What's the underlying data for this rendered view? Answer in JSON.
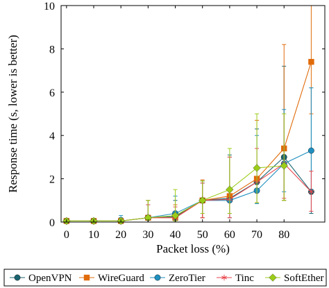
{
  "chart_data": {
    "type": "line",
    "xlabel": "Packet loss (%)",
    "ylabel": "Response time (s, lower is better)",
    "xlim": [
      -2,
      95
    ],
    "ylim": [
      0,
      10
    ],
    "x_ticks": [
      0,
      10,
      20,
      30,
      40,
      50,
      60,
      70,
      80
    ],
    "y_ticks": [
      0,
      2,
      4,
      6,
      8,
      10
    ],
    "x": [
      0,
      10,
      20,
      30,
      40,
      50,
      60,
      70,
      80,
      90
    ],
    "grid": false,
    "legend_position": "below",
    "series": [
      {
        "name": "OpenVPN",
        "color": "#1a6470",
        "marker": "circle",
        "values": [
          0.05,
          0.05,
          0.05,
          0.2,
          0.25,
          1.0,
          1.1,
          1.85,
          3.0,
          1.4
        ],
        "err_low": [
          0.05,
          0.05,
          0.05,
          0.2,
          0.2,
          0.8,
          0.9,
          1.0,
          2.0,
          1.0
        ],
        "err_high": [
          0.05,
          0.05,
          0.15,
          0.8,
          0.75,
          0.9,
          2.0,
          2.45,
          4.2,
          4.8
        ]
      },
      {
        "name": "WireGuard",
        "color": "#e06b0b",
        "marker": "square",
        "values": [
          0.05,
          0.05,
          0.05,
          0.2,
          0.2,
          1.0,
          1.2,
          2.0,
          3.4,
          7.4
        ],
        "err_low": [
          0.05,
          0.05,
          0.05,
          0.2,
          0.2,
          0.8,
          0.8,
          1.1,
          2.4,
          2.4
        ],
        "err_high": [
          0.05,
          0.05,
          0.1,
          0.8,
          0.6,
          0.95,
          1.8,
          2.7,
          4.8,
          2.6
        ]
      },
      {
        "name": "ZeroTier",
        "color": "#1f8fbf",
        "marker": "circle",
        "values": [
          0.05,
          0.05,
          0.05,
          0.2,
          0.4,
          1.0,
          1.0,
          1.45,
          2.7,
          3.3
        ],
        "err_low": [
          0.05,
          0.05,
          0.05,
          0.2,
          0.3,
          0.6,
          0.6,
          0.6,
          1.3,
          1.8
        ],
        "err_high": [
          0.05,
          0.05,
          0.25,
          0.6,
          0.8,
          0.8,
          2.0,
          2.55,
          2.5,
          2.9
        ]
      },
      {
        "name": "Tinc",
        "color": "#e8464e",
        "marker": "star",
        "values": [
          0.05,
          0.05,
          0.05,
          0.2,
          0.2,
          1.0,
          1.05,
          1.85,
          2.7,
          1.4
        ],
        "err_low": [
          0.05,
          0.05,
          0.05,
          0.2,
          0.2,
          0.8,
          0.85,
          0.95,
          1.6,
          0.9
        ],
        "err_high": [
          0.05,
          0.05,
          0.1,
          0.6,
          0.5,
          0.8,
          1.95,
          1.55,
          2.3,
          0.95
        ]
      },
      {
        "name": "SoftEther",
        "color": "#9ccc1a",
        "marker": "diamond",
        "values": [
          0.05,
          0.05,
          0.05,
          0.2,
          0.3,
          1.0,
          1.5,
          2.5,
          2.6,
          null
        ],
        "err_low": [
          0.05,
          0.05,
          0.05,
          0.2,
          0.25,
          0.6,
          1.1,
          1.6,
          1.6,
          null
        ],
        "err_high": [
          0.05,
          0.05,
          0.1,
          0.8,
          1.2,
          0.9,
          1.9,
          2.5,
          2.4,
          null
        ]
      }
    ]
  }
}
